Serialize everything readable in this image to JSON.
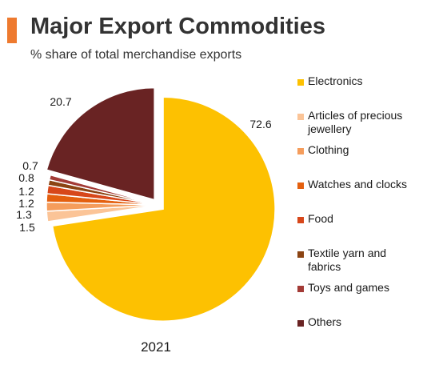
{
  "header": {
    "title": "Major Export Commodities",
    "subtitle": "% share of total merchandise exports",
    "accent_color": "#ee7a2f"
  },
  "chart_data": {
    "type": "pie",
    "title": "Major Export Commodities",
    "subtitle": "% share of total merchandise exports",
    "category_label": "2021",
    "legend_position": "right",
    "exploded_slices": [
      "Electronics",
      "Others"
    ],
    "slices": [
      {
        "name": "Electronics",
        "value": 72.6,
        "label": "72.6",
        "color": "#fdc101"
      },
      {
        "name": "Articles of precious jewellery",
        "value": 1.5,
        "label": "1.5",
        "color": "#fbc497"
      },
      {
        "name": "Clothing",
        "value": 1.3,
        "label": "1.3",
        "color": "#f59d5c"
      },
      {
        "name": "Watches and clocks",
        "value": 1.2,
        "label": "1.2",
        "color": "#e4600f"
      },
      {
        "name": "Food",
        "value": 1.2,
        "label": "1.2",
        "color": "#d7471a"
      },
      {
        "name": "Textile yarn and fabrics",
        "value": 0.8,
        "label": "0.8",
        "color": "#8b4413"
      },
      {
        "name": "Toys and games",
        "value": 0.7,
        "label": "0.7",
        "color": "#a33b36"
      },
      {
        "name": "Others",
        "value": 20.7,
        "label": "20.7",
        "color": "#692323"
      }
    ],
    "legend_lines": [
      [
        "Electronics"
      ],
      [
        "Articles of precious",
        "jewellery"
      ],
      [
        "Clothing"
      ],
      [
        "Watches and clocks"
      ],
      [
        "Food"
      ],
      [
        "Textile yarn and",
        "fabrics"
      ],
      [
        "Toys and games"
      ],
      [
        "Others"
      ]
    ]
  }
}
